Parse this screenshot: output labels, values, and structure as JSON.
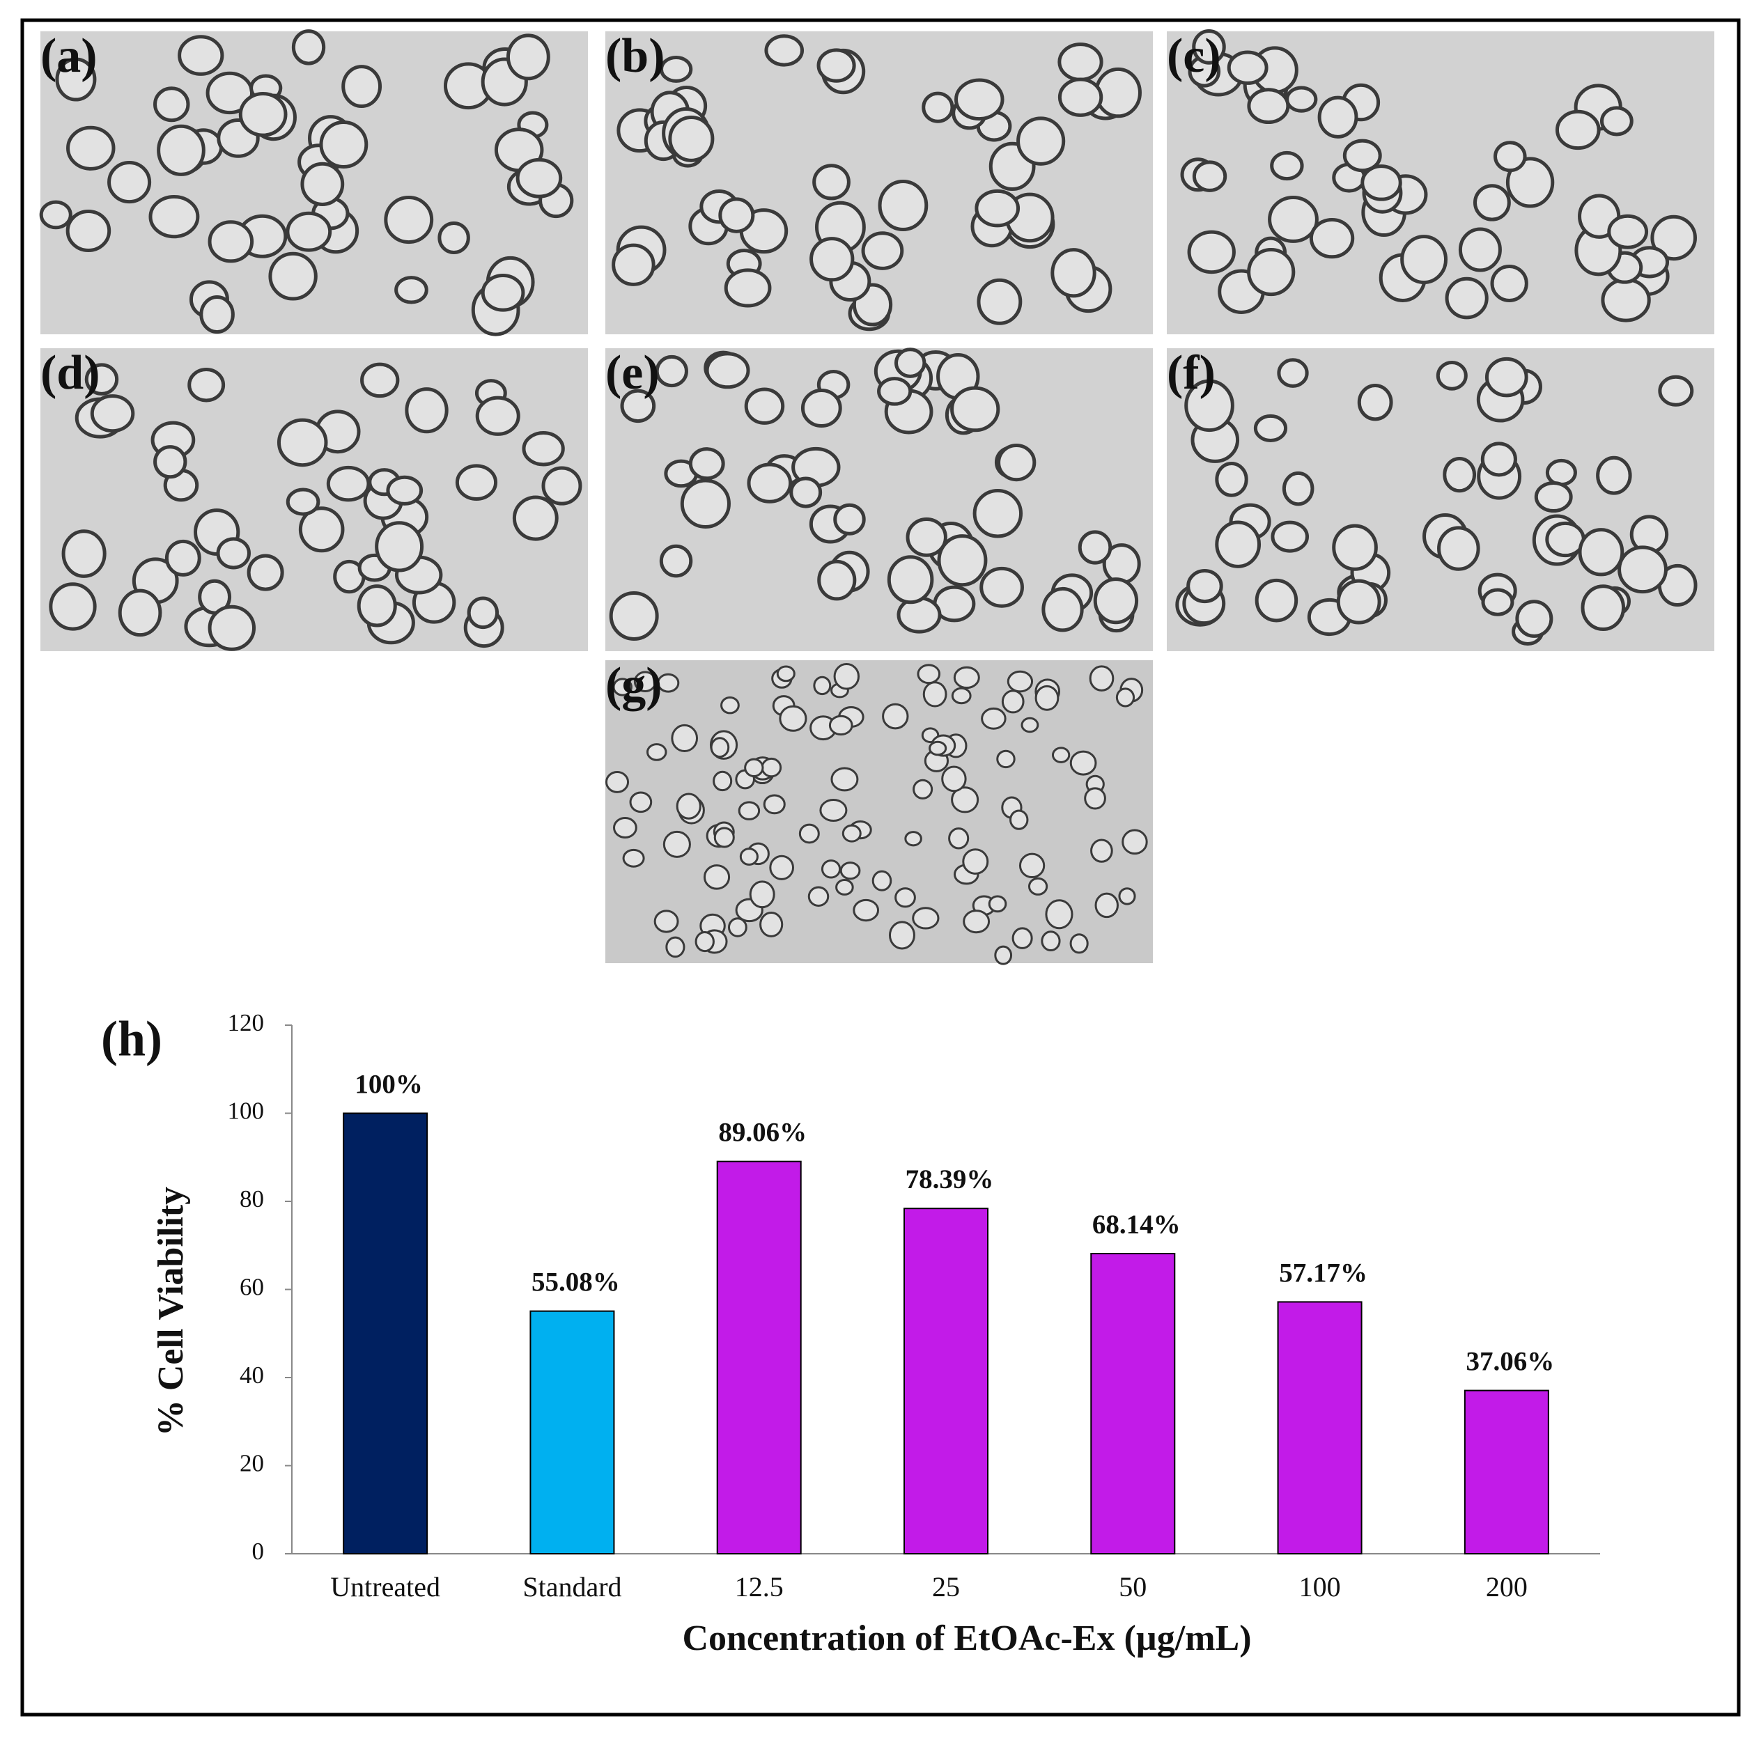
{
  "panels": [
    {
      "label": "(a)"
    },
    {
      "label": "(b)"
    },
    {
      "label": "(c)"
    },
    {
      "label": "(d)"
    },
    {
      "label": "(e)"
    },
    {
      "label": "(f)"
    },
    {
      "label": "(g)"
    }
  ],
  "chart_data": {
    "type": "bar",
    "panel_label": "(h)",
    "categories": [
      "Untreated",
      "Standard",
      "12.5",
      "25",
      "50",
      "100",
      "200"
    ],
    "values": [
      100,
      55.08,
      89.06,
      78.39,
      68.14,
      57.17,
      37.06
    ],
    "value_labels": [
      "100%",
      "55.08%",
      "89.06%",
      "78.39%",
      "68.14%",
      "57.17%",
      "37.06%"
    ],
    "colors": [
      "#002060",
      "#00b0f0",
      "#c21be8",
      "#c21be8",
      "#c21be8",
      "#c21be8",
      "#c21be8"
    ],
    "ylim": [
      0,
      120
    ],
    "yticks": [
      0,
      20,
      40,
      60,
      80,
      100,
      120
    ],
    "x_label": "Concentration of EtOAc-Ex (µg/mL)",
    "y_label": "% Cell Viability"
  }
}
